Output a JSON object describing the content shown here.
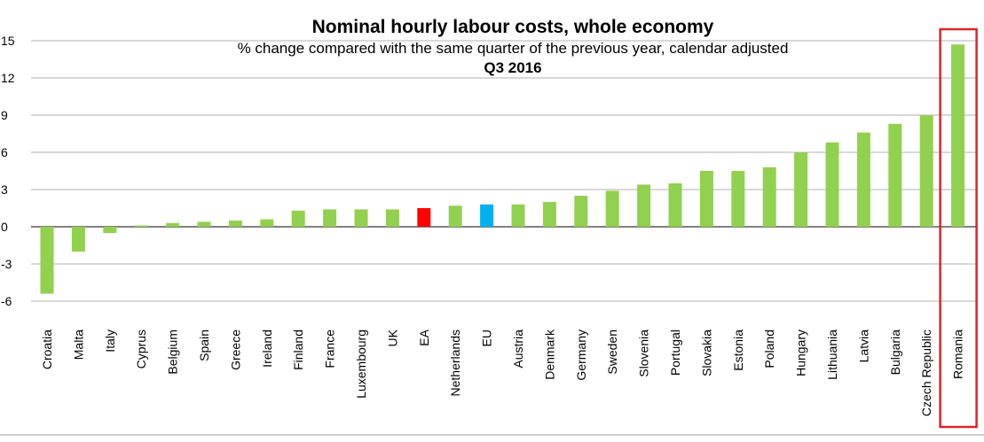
{
  "chart_data": {
    "type": "bar",
    "title": "Nominal hourly labour costs, whole economy",
    "subtitle": "% change compared with the same quarter of the previous year, calendar adjusted",
    "period": "Q3 2016",
    "ylim": [
      -6,
      15
    ],
    "yticks": [
      15,
      12,
      9,
      6,
      3,
      0,
      -3,
      -6
    ],
    "ytick_labels": [
      "15",
      "12",
      "9",
      "6",
      "3",
      "0",
      "-3",
      "-6"
    ],
    "grid": true,
    "categories": [
      "Croatia",
      "Malta",
      "Italy",
      "Cyprus",
      "Belgium",
      "Spain",
      "Greece",
      "Ireland",
      "Finland",
      "France",
      "Luxembourg",
      "UK",
      "EA",
      "Netherlands",
      "EU",
      "Austria",
      "Denmark",
      "Germany",
      "Sweden",
      "Slovenia",
      "Portugal",
      "Slovakia",
      "Estonia",
      "Poland",
      "Hungary",
      "Lithuania",
      "Latvia",
      "Bulgaria",
      "Czech Republic",
      "Romania"
    ],
    "values": [
      -5.4,
      -2.0,
      -0.5,
      0.1,
      0.3,
      0.4,
      0.5,
      0.6,
      1.3,
      1.4,
      1.4,
      1.4,
      1.5,
      1.7,
      1.8,
      1.8,
      2.0,
      2.5,
      2.9,
      3.4,
      3.5,
      4.5,
      4.5,
      4.8,
      6.0,
      6.8,
      7.6,
      8.3,
      9.0,
      14.7
    ],
    "bar_colors": [
      "#92d050",
      "#92d050",
      "#92d050",
      "#92d050",
      "#92d050",
      "#92d050",
      "#92d050",
      "#92d050",
      "#92d050",
      "#92d050",
      "#92d050",
      "#92d050",
      "#ff0000",
      "#92d050",
      "#00b0f0",
      "#92d050",
      "#92d050",
      "#92d050",
      "#92d050",
      "#92d050",
      "#92d050",
      "#92d050",
      "#92d050",
      "#92d050",
      "#92d050",
      "#92d050",
      "#92d050",
      "#92d050",
      "#92d050",
      "#92d050"
    ],
    "highlight_category": "Romania",
    "highlight_color": "#d9262c",
    "grid_color": "#b0b0b0",
    "zero_line_color": "#808080"
  }
}
